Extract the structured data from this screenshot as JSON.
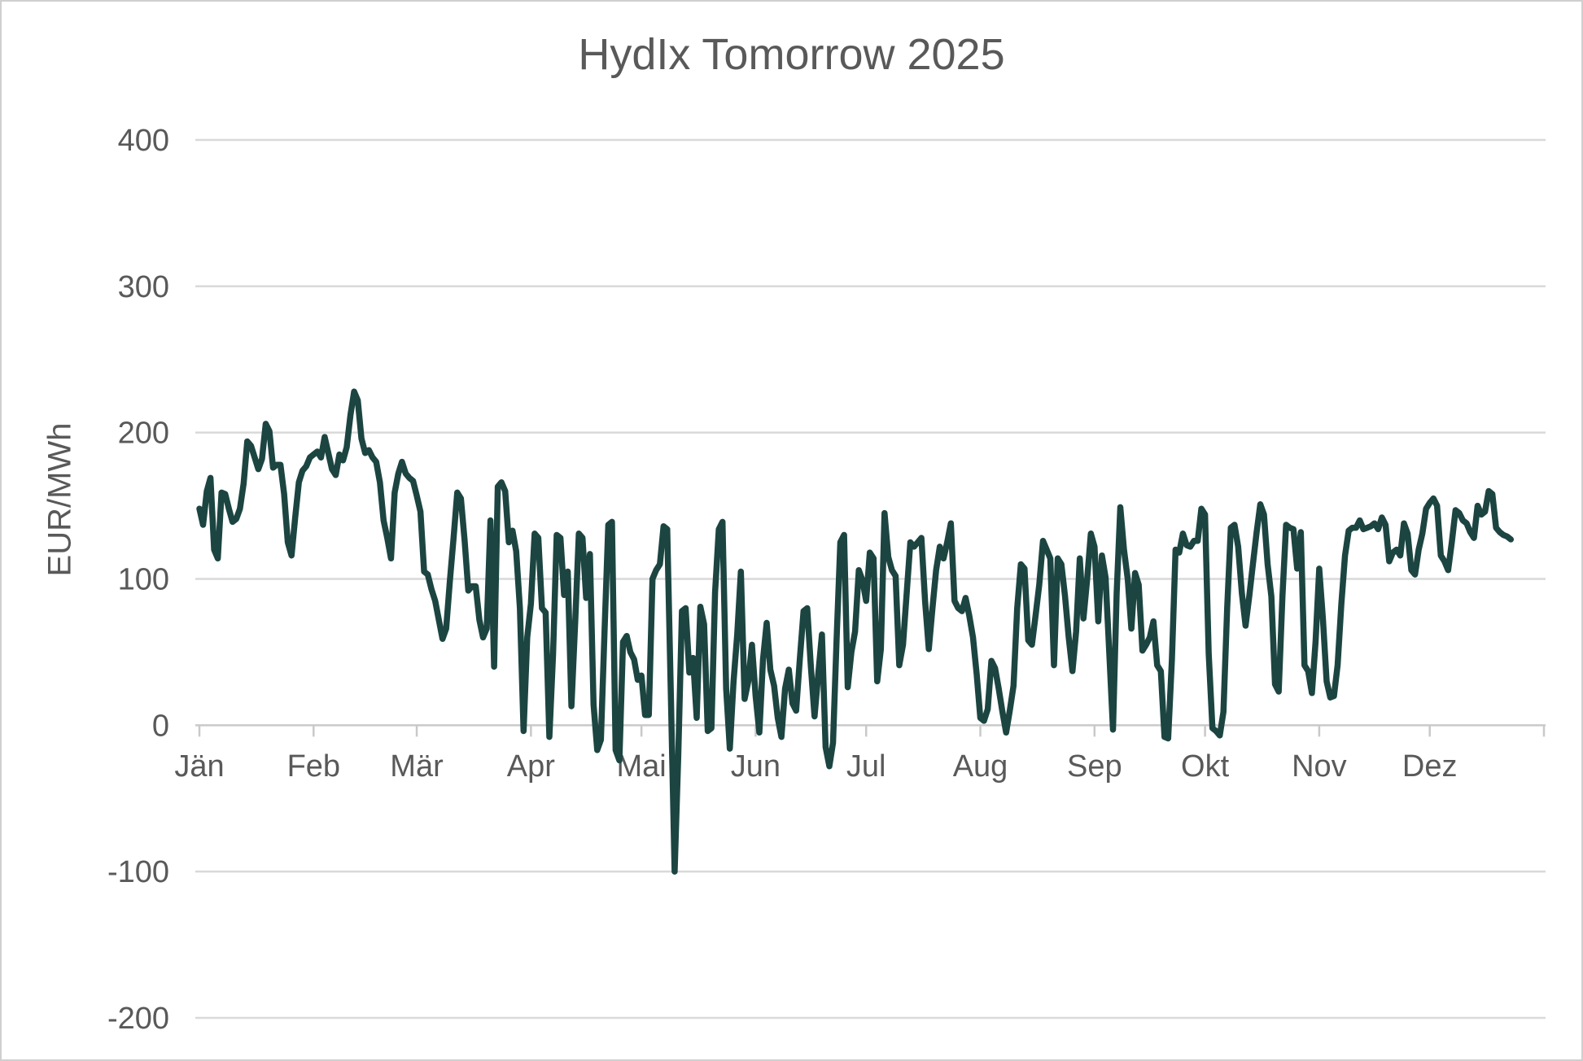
{
  "title": "HydIx Tomorrow 2025",
  "y_axis_label": "EUR/MWh",
  "colors": {
    "line": "#1c4541",
    "gridline": "#d9d9d9",
    "zero_axis": "#c9c9c9",
    "label_text": "#595959",
    "background": "#ffffff",
    "frame_border": "#cfcfcf"
  },
  "chart_data": {
    "type": "line",
    "title": "HydIx Tomorrow 2025",
    "xlabel": "",
    "ylabel": "EUR/MWh",
    "unit": "EUR/MWh",
    "ylim": [
      -200,
      400
    ],
    "yticks": [
      400,
      300,
      200,
      100,
      0,
      -100,
      -200
    ],
    "grid": true,
    "legend": "none",
    "days_in_year": 365,
    "x_months": [
      {
        "label": "Jän",
        "start_day": 0
      },
      {
        "label": "Feb",
        "start_day": 31
      },
      {
        "label": "Mär",
        "start_day": 59
      },
      {
        "label": "Apr",
        "start_day": 90
      },
      {
        "label": "Mai",
        "start_day": 120
      },
      {
        "label": "Jun",
        "start_day": 151
      },
      {
        "label": "Jul",
        "start_day": 181
      },
      {
        "label": "Aug",
        "start_day": 212
      },
      {
        "label": "Sep",
        "start_day": 243
      },
      {
        "label": "Okt",
        "start_day": 273
      },
      {
        "label": "Nov",
        "start_day": 304
      },
      {
        "label": "Dez",
        "start_day": 334
      }
    ],
    "series": [
      {
        "name": "HydIx Tomorrow 2025",
        "start_day": 0,
        "frequency": "daily",
        "values": [
          148,
          137,
          160,
          169,
          120,
          114,
          159,
          158,
          148,
          139,
          141,
          148,
          165,
          194,
          191,
          183,
          175,
          182,
          206,
          201,
          176,
          178,
          178,
          158,
          125,
          116,
          142,
          166,
          174,
          177,
          183,
          185,
          187,
          183,
          197,
          186,
          175,
          171,
          185,
          181,
          190,
          212,
          228,
          222,
          196,
          186,
          188,
          183,
          180,
          166,
          140,
          128,
          114,
          159,
          172,
          180,
          172,
          169,
          167,
          157,
          146,
          105,
          103,
          93,
          85,
          72,
          59,
          66,
          99,
          128,
          159,
          155,
          126,
          92,
          95,
          95,
          72,
          60,
          66,
          140,
          40,
          163,
          166,
          160,
          125,
          133,
          119,
          80,
          -4,
          60,
          83,
          131,
          128,
          80,
          77,
          -8,
          48,
          130,
          128,
          89,
          105,
          13,
          70,
          131,
          128,
          87,
          117,
          14,
          -17,
          -10,
          66,
          137,
          139,
          -17,
          -24,
          57,
          61,
          50,
          45,
          31,
          34,
          7,
          7,
          100,
          106,
          110,
          136,
          134,
          20,
          -100,
          -20,
          78,
          80,
          36,
          46,
          5,
          81,
          69,
          -4,
          -2,
          91,
          134,
          139,
          25,
          -16,
          30,
          62,
          105,
          18,
          30,
          55,
          20,
          -5,
          45,
          70,
          38,
          27,
          5,
          -8,
          25,
          38,
          15,
          10,
          45,
          78,
          80,
          40,
          6,
          35,
          62,
          -15,
          -28,
          -12,
          60,
          125,
          130,
          26,
          50,
          64,
          106,
          99,
          85,
          118,
          114,
          30,
          52,
          145,
          115,
          106,
          102,
          41,
          55,
          90,
          125,
          122,
          125,
          128,
          85,
          52,
          80,
          106,
          122,
          114,
          125,
          138,
          85,
          80,
          78,
          87,
          75,
          60,
          35,
          5,
          3,
          11,
          44,
          39,
          25,
          9,
          -5,
          10,
          27,
          80,
          110,
          107,
          58,
          55,
          75,
          96,
          126,
          120,
          114,
          41,
          114,
          110,
          88,
          60,
          37,
          64,
          114,
          73,
          100,
          131,
          122,
          71,
          116,
          101,
          50,
          -3,
          90,
          149,
          120,
          100,
          66,
          104,
          96,
          51,
          55,
          60,
          71,
          41,
          37,
          -8,
          -9,
          45,
          120,
          118,
          131,
          123,
          122,
          126,
          126,
          148,
          144,
          49,
          -2,
          -4,
          -7,
          9,
          80,
          135,
          137,
          122,
          90,
          68,
          88,
          110,
          132,
          151,
          144,
          110,
          88,
          28,
          23,
          88,
          137,
          135,
          134,
          107,
          132,
          41,
          37,
          22,
          57,
          107,
          73,
          30,
          19,
          20,
          41,
          83,
          116,
          133,
          135,
          135,
          140,
          134,
          135,
          136,
          138,
          134,
          142,
          137,
          112,
          118,
          120,
          116,
          138,
          131,
          106,
          103,
          120,
          131,
          148,
          152,
          155,
          150,
          116,
          112,
          106,
          125,
          147,
          145,
          140,
          138,
          132,
          128,
          150,
          144,
          146,
          160,
          158,
          135,
          132,
          130,
          129,
          127
        ]
      }
    ]
  }
}
